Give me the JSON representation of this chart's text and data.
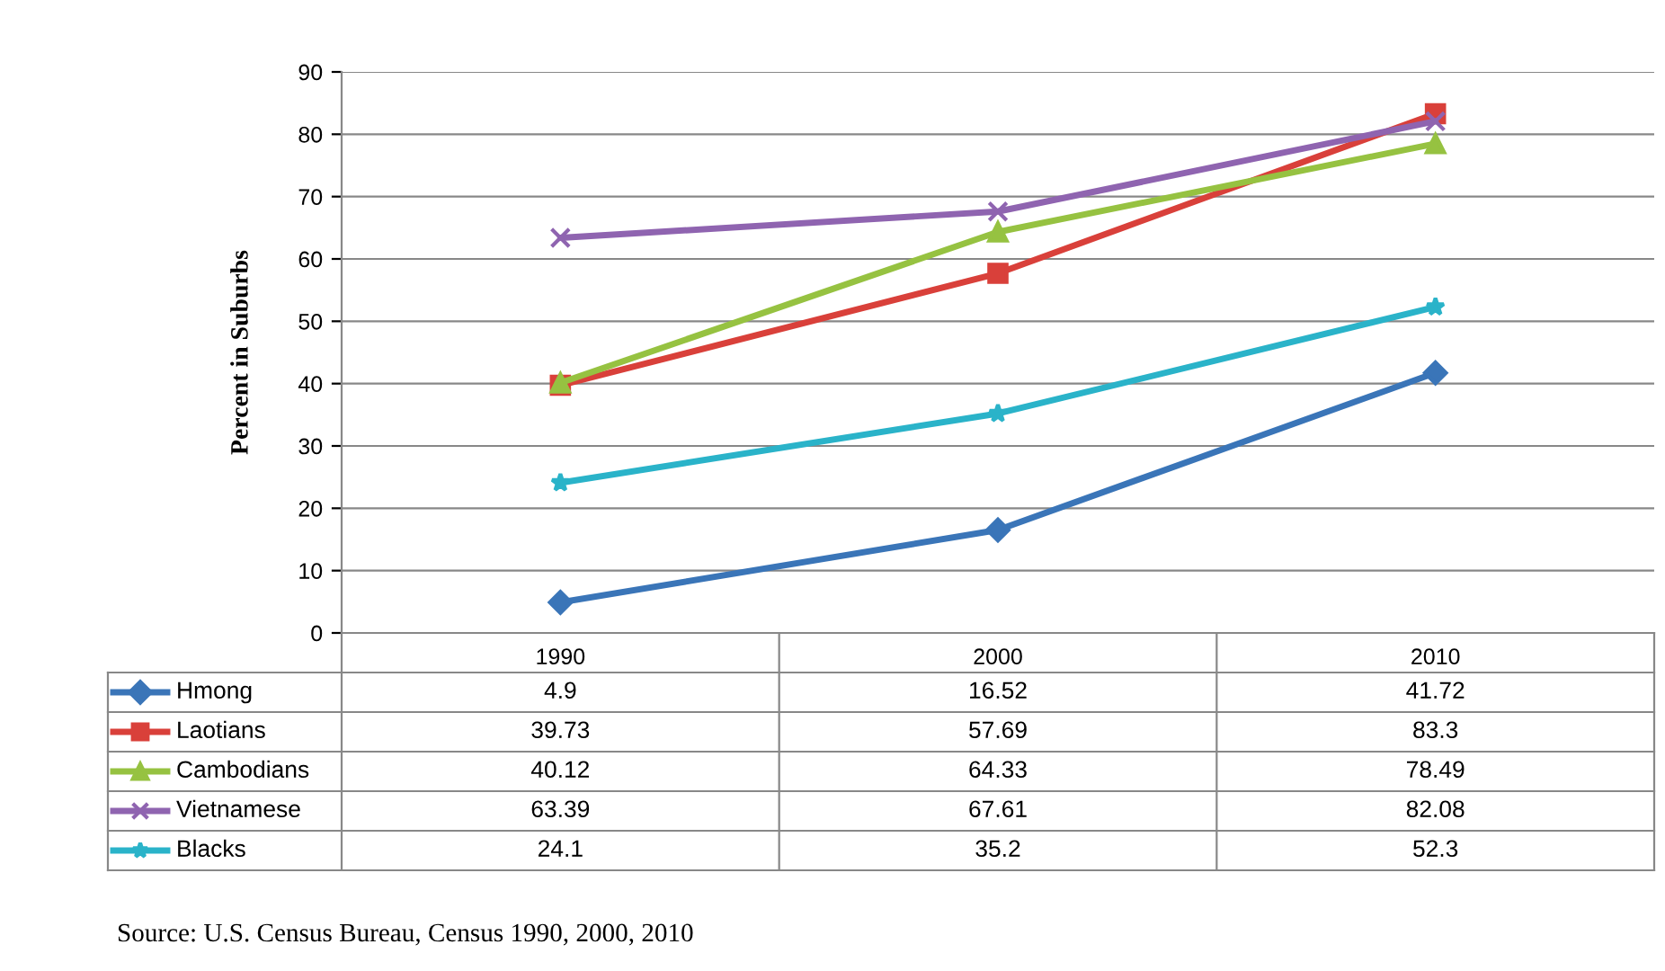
{
  "chart_data": {
    "type": "line",
    "ylabel": "Percent in Suburbs",
    "categories": [
      "1990",
      "2000",
      "2010"
    ],
    "series": [
      {
        "name": "Hmong",
        "color": "#3a75b8",
        "marker": "diamond",
        "values": [
          4.9,
          16.52,
          41.72
        ]
      },
      {
        "name": "Laotians",
        "color": "#d9403a",
        "marker": "square",
        "values": [
          39.73,
          57.69,
          83.3
        ]
      },
      {
        "name": "Cambodians",
        "color": "#96c241",
        "marker": "triangle",
        "values": [
          40.12,
          64.33,
          78.49
        ]
      },
      {
        "name": "Vietnamese",
        "color": "#8f64b0",
        "marker": "cross",
        "values": [
          63.39,
          67.61,
          82.08
        ]
      },
      {
        "name": "Blacks",
        "color": "#2ab3c9",
        "marker": "star",
        "values": [
          24.1,
          35.2,
          52.3
        ]
      }
    ],
    "ylim": [
      0,
      90
    ],
    "yticks": [
      0,
      10,
      20,
      30,
      40,
      50,
      60,
      70,
      80,
      90
    ],
    "grid": "y",
    "legend": "bottom",
    "data_labels": true,
    "annotations": [
      "Source: U.S. Census Bureau, Census 1990, 2000, 2010"
    ]
  }
}
